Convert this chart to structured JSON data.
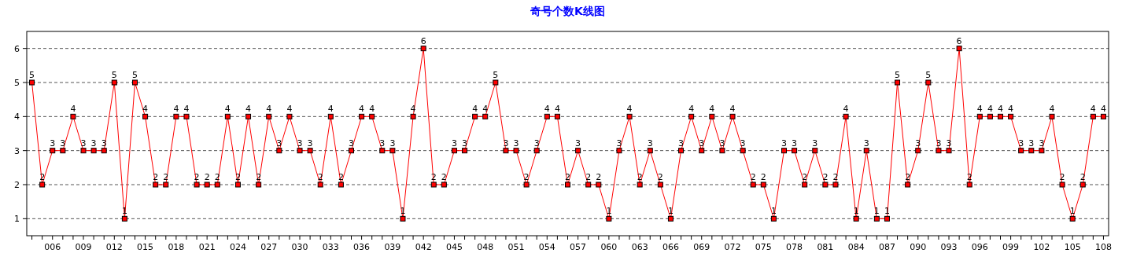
{
  "chart_data": {
    "type": "line",
    "title": "奇号个数K线图",
    "categories": [
      null,
      null,
      "006",
      null,
      null,
      "009",
      null,
      null,
      "012",
      null,
      null,
      "015",
      null,
      null,
      "018",
      null,
      null,
      "021",
      null,
      null,
      "024",
      null,
      null,
      "027",
      null,
      null,
      "030",
      null,
      null,
      "033",
      null,
      null,
      "036",
      null,
      null,
      "039",
      null,
      null,
      "042",
      null,
      null,
      "045",
      null,
      null,
      "048",
      null,
      null,
      "051",
      null,
      null,
      "054",
      null,
      null,
      "057",
      null,
      null,
      "060",
      null,
      null,
      "063",
      null,
      null,
      "066",
      null,
      null,
      "069",
      null,
      null,
      "072",
      null,
      null,
      "075",
      null,
      null,
      "078",
      null,
      null,
      "081",
      null,
      null,
      "084",
      null,
      null,
      "087",
      null,
      null,
      "090",
      null,
      null,
      "093",
      null,
      null,
      "096",
      null,
      null,
      "099",
      null,
      null,
      "102",
      null,
      null,
      "105",
      null,
      null,
      "108"
    ],
    "series": [
      {
        "color": "#ff0000",
        "values": [
          5,
          2,
          3,
          3,
          4,
          3,
          3,
          3,
          5,
          1,
          5,
          4,
          2,
          2,
          4,
          4,
          2,
          2,
          2,
          4,
          2,
          4,
          2,
          4,
          3,
          4,
          3,
          3,
          2,
          4,
          2,
          3,
          4,
          4,
          3,
          3,
          1,
          4,
          6,
          2,
          2,
          3,
          3,
          4,
          4,
          5,
          3,
          3,
          2,
          3,
          4,
          4,
          2,
          3,
          2,
          2,
          1,
          3,
          4,
          2,
          3,
          2,
          1,
          3,
          4,
          3,
          4,
          3,
          4,
          3,
          2,
          2,
          1,
          3,
          3,
          2,
          3,
          2,
          2,
          4,
          1,
          3,
          1,
          1,
          5,
          2,
          3,
          5,
          3,
          3,
          6,
          2,
          4,
          4,
          4,
          4,
          3,
          3,
          3,
          4,
          2,
          1,
          2,
          4,
          4
        ]
      }
    ],
    "ylim": [
      0.5,
      6.5
    ],
    "yticks": [
      1,
      2,
      3,
      4,
      5,
      6
    ],
    "grid": "y",
    "marker": "square",
    "line_style": "solid",
    "data_labels": true
  }
}
